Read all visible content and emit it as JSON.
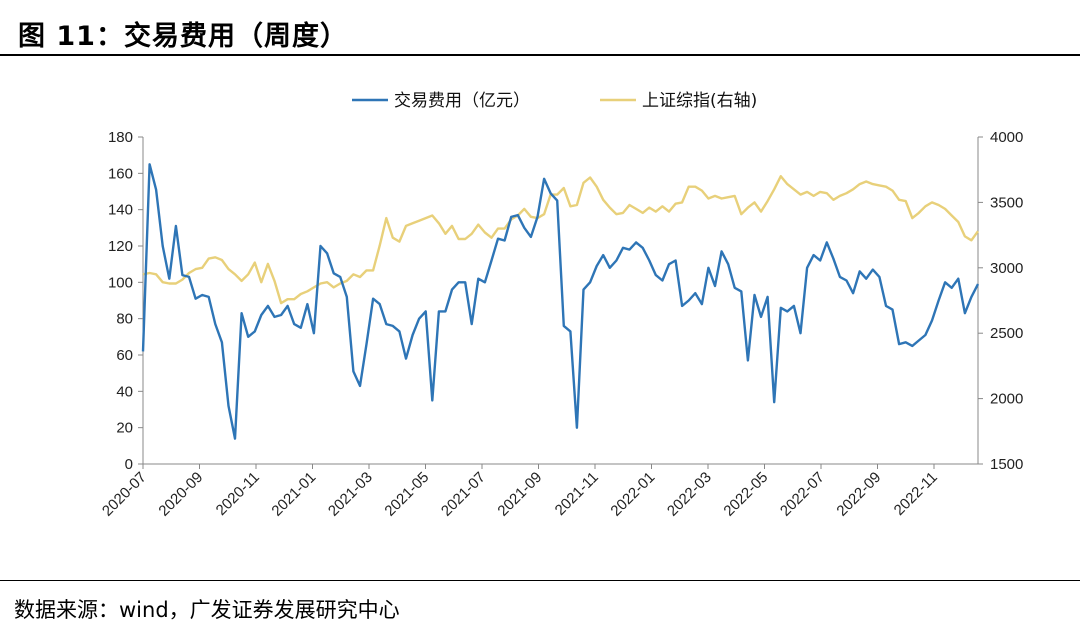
{
  "figure": {
    "title": "图 11：交易费用（周度）",
    "source": "数据来源：wind，广发证券发展研究中心"
  },
  "chart_data": {
    "type": "line",
    "title": "图 11：交易费用（周度）",
    "x_ticks": [
      "2020-07",
      "2020-09",
      "2020-11",
      "2021-01",
      "2021-03",
      "2021-05",
      "2021-07",
      "2021-09",
      "2021-11",
      "2022-01",
      "2022-03",
      "2022-05",
      "2022-07",
      "2022-09",
      "2022-11"
    ],
    "y_left": {
      "min": 0,
      "max": 180,
      "step": 20,
      "ticks": [
        "0",
        "20",
        "40",
        "60",
        "80",
        "100",
        "120",
        "140",
        "160",
        "180"
      ]
    },
    "y_right": {
      "min": 1500,
      "max": 4000,
      "step": 500,
      "ticks": [
        "1500",
        "2000",
        "2500",
        "3000",
        "3500",
        "4000"
      ]
    },
    "legend_position": "top-center",
    "series": [
      {
        "name": "交易费用（亿元）",
        "axis": "left",
        "color": "#2E75B6",
        "values": [
          62,
          165,
          151,
          120,
          102,
          131,
          104,
          103,
          91,
          93,
          92,
          77,
          67,
          32,
          14,
          83,
          70,
          73,
          82,
          87,
          81,
          82,
          87,
          77,
          75,
          88,
          72,
          120,
          116,
          105,
          103,
          92,
          51,
          43,
          66,
          91,
          88,
          77,
          76,
          73,
          58,
          71,
          80,
          84,
          35,
          84,
          84,
          96,
          100,
          100,
          77,
          102,
          100,
          112,
          124,
          123,
          136,
          137,
          130,
          125,
          136,
          157,
          149,
          145,
          76,
          73,
          20,
          96,
          100,
          109,
          115,
          108,
          112,
          119,
          118,
          122,
          119,
          112,
          104,
          101,
          110,
          112,
          87,
          90,
          94,
          88,
          108,
          98,
          117,
          110,
          97,
          95,
          57,
          93,
          81,
          92,
          34,
          86,
          84,
          87,
          72,
          108,
          115,
          112,
          122,
          113,
          103,
          101,
          94,
          106,
          102,
          107,
          103,
          87,
          85,
          66,
          67,
          65,
          68,
          71,
          79,
          90,
          100,
          97,
          102,
          83,
          92,
          99
        ]
      },
      {
        "name": "上证综指(右轴)",
        "axis": "right",
        "color": "#E8D07A",
        "values": [
          2950,
          2960,
          2950,
          2890,
          2880,
          2880,
          2910,
          2960,
          2990,
          3000,
          3070,
          3080,
          3060,
          2990,
          2950,
          2900,
          2950,
          3040,
          2890,
          3030,
          2900,
          2730,
          2760,
          2760,
          2800,
          2820,
          2850,
          2880,
          2890,
          2850,
          2880,
          2900,
          2950,
          2930,
          2980,
          2980,
          3170,
          3380,
          3230,
          3200,
          3320,
          3340,
          3360,
          3380,
          3400,
          3340,
          3260,
          3320,
          3220,
          3220,
          3260,
          3330,
          3270,
          3230,
          3300,
          3300,
          3370,
          3400,
          3450,
          3390,
          3380,
          3410,
          3560,
          3560,
          3610,
          3470,
          3480,
          3650,
          3690,
          3620,
          3520,
          3460,
          3410,
          3420,
          3480,
          3450,
          3420,
          3460,
          3430,
          3470,
          3430,
          3490,
          3500,
          3620,
          3620,
          3590,
          3530,
          3550,
          3530,
          3540,
          3550,
          3410,
          3460,
          3500,
          3430,
          3510,
          3600,
          3700,
          3640,
          3600,
          3560,
          3580,
          3550,
          3580,
          3570,
          3520,
          3550,
          3570,
          3600,
          3640,
          3660,
          3640,
          3630,
          3620,
          3590,
          3520,
          3510,
          3380,
          3420,
          3470,
          3500,
          3480,
          3450,
          3400,
          3350,
          3240,
          3210,
          3280
        ]
      }
    ]
  }
}
